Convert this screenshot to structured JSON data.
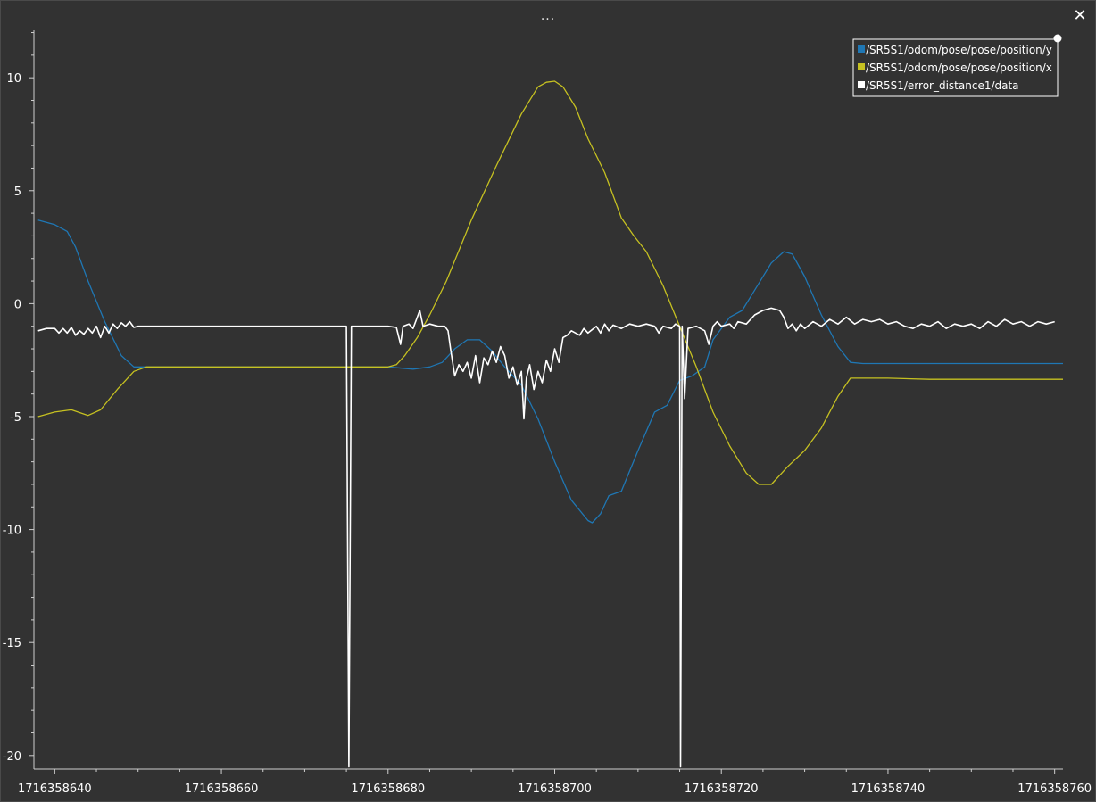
{
  "window": {
    "title": "...",
    "close_symbol": "✕"
  },
  "colors": {
    "background": "#323232",
    "axis": "#cfcfcf"
  },
  "chart_data": {
    "type": "line",
    "xlim": [
      1716358637.5,
      1716358761
    ],
    "ylim": [
      -20.6,
      12.1
    ],
    "x_ticks": [
      1716358640,
      1716358660,
      1716358680,
      1716358700,
      1716358720,
      1716358740,
      1716358760
    ],
    "x_tick_labels": [
      "1716358640",
      "1716358660",
      "1716358680",
      "1716358700",
      "1716358720",
      "1716358740",
      "1716358760"
    ],
    "y_ticks": [
      10,
      5,
      0,
      -5,
      -10,
      -15,
      -20
    ],
    "y_tick_labels": [
      "10",
      "5",
      "0",
      "-5",
      "-10",
      "-15",
      "-20"
    ],
    "legend_position": "top-right",
    "series": [
      {
        "name": "/SR5S1/odom/pose/pose/position/y",
        "color": "#1f77b4",
        "points": [
          [
            1716358638,
            3.7
          ],
          [
            1716358640,
            3.5
          ],
          [
            1716358641.5,
            3.2
          ],
          [
            1716358642.5,
            2.5
          ],
          [
            1716358644,
            1.0
          ],
          [
            1716358646,
            -0.8
          ],
          [
            1716358648,
            -2.3
          ],
          [
            1716358649.5,
            -2.8
          ],
          [
            1716358652,
            -2.8
          ],
          [
            1716358660,
            -2.8
          ],
          [
            1716358670,
            -2.8
          ],
          [
            1716358680,
            -2.8
          ],
          [
            1716358683,
            -2.9
          ],
          [
            1716358685,
            -2.8
          ],
          [
            1716358686.5,
            -2.6
          ],
          [
            1716358688,
            -2.0
          ],
          [
            1716358689.5,
            -1.6
          ],
          [
            1716358691,
            -1.6
          ],
          [
            1716358692.5,
            -2.1
          ],
          [
            1716358694,
            -2.8
          ],
          [
            1716358696,
            -3.6
          ],
          [
            1716358698,
            -5.1
          ],
          [
            1716358700,
            -7.0
          ],
          [
            1716358702,
            -8.7
          ],
          [
            1716358704,
            -9.6
          ],
          [
            1716358704.5,
            -9.7
          ],
          [
            1716358705.5,
            -9.3
          ],
          [
            1716358706.5,
            -8.5
          ],
          [
            1716358708,
            -8.3
          ],
          [
            1716358710,
            -6.5
          ],
          [
            1716358712,
            -4.8
          ],
          [
            1716358713.5,
            -4.5
          ],
          [
            1716358715,
            -3.4
          ],
          [
            1716358716.5,
            -3.2
          ],
          [
            1716358718,
            -2.8
          ],
          [
            1716358719,
            -1.6
          ],
          [
            1716358721,
            -0.6
          ],
          [
            1716358722.5,
            -0.3
          ],
          [
            1716358724,
            0.6
          ],
          [
            1716358726,
            1.8
          ],
          [
            1716358727.5,
            2.3
          ],
          [
            1716358728.5,
            2.2
          ],
          [
            1716358730,
            1.2
          ],
          [
            1716358732,
            -0.5
          ],
          [
            1716358734,
            -1.9
          ],
          [
            1716358735.5,
            -2.6
          ],
          [
            1716358737,
            -2.65
          ],
          [
            1716358745,
            -2.65
          ],
          [
            1716358755,
            -2.65
          ],
          [
            1716358761,
            -2.65
          ]
        ]
      },
      {
        "name": "/SR5S1/odom/pose/pose/position/x",
        "color": "#c6c121",
        "points": [
          [
            1716358638,
            -5.0
          ],
          [
            1716358640,
            -4.8
          ],
          [
            1716358642,
            -4.7
          ],
          [
            1716358644,
            -4.95
          ],
          [
            1716358645.5,
            -4.7
          ],
          [
            1716358647.5,
            -3.8
          ],
          [
            1716358649.5,
            -3.0
          ],
          [
            1716358651,
            -2.8
          ],
          [
            1716358660,
            -2.8
          ],
          [
            1716358670,
            -2.8
          ],
          [
            1716358680,
            -2.8
          ],
          [
            1716358681,
            -2.7
          ],
          [
            1716358682,
            -2.3
          ],
          [
            1716358683.5,
            -1.5
          ],
          [
            1716358685,
            -0.5
          ],
          [
            1716358687,
            1.0
          ],
          [
            1716358690,
            3.7
          ],
          [
            1716358693,
            6.1
          ],
          [
            1716358696,
            8.4
          ],
          [
            1716358698,
            9.6
          ],
          [
            1716358699,
            9.8
          ],
          [
            1716358700,
            9.85
          ],
          [
            1716358701,
            9.6
          ],
          [
            1716358702.5,
            8.7
          ],
          [
            1716358704,
            7.3
          ],
          [
            1716358706,
            5.8
          ],
          [
            1716358708,
            3.8
          ],
          [
            1716358709.5,
            3.0
          ],
          [
            1716358711,
            2.3
          ],
          [
            1716358713,
            0.8
          ],
          [
            1716358715,
            -1.0
          ],
          [
            1716358717,
            -2.8
          ],
          [
            1716358719,
            -4.8
          ],
          [
            1716358721,
            -6.3
          ],
          [
            1716358723,
            -7.5
          ],
          [
            1716358724.5,
            -8.0
          ],
          [
            1716358726,
            -8.0
          ],
          [
            1716358727,
            -7.6
          ],
          [
            1716358728,
            -7.2
          ],
          [
            1716358730,
            -6.5
          ],
          [
            1716358732,
            -5.5
          ],
          [
            1716358734,
            -4.1
          ],
          [
            1716358735.5,
            -3.3
          ],
          [
            1716358740,
            -3.3
          ],
          [
            1716358745,
            -3.35
          ],
          [
            1716358761,
            -3.35
          ]
        ]
      },
      {
        "name": "/SR5S1/error_distance1/data",
        "color": "#ffffff",
        "points": [
          [
            1716358638,
            -1.2
          ],
          [
            1716358639,
            -1.1
          ],
          [
            1716358640,
            -1.1
          ],
          [
            1716358640.5,
            -1.3
          ],
          [
            1716358641,
            -1.1
          ],
          [
            1716358641.5,
            -1.3
          ],
          [
            1716358642,
            -1.05
          ],
          [
            1716358642.5,
            -1.4
          ],
          [
            1716358643,
            -1.2
          ],
          [
            1716358643.5,
            -1.35
          ],
          [
            1716358644,
            -1.1
          ],
          [
            1716358644.5,
            -1.3
          ],
          [
            1716358645,
            -1.0
          ],
          [
            1716358645.5,
            -1.5
          ],
          [
            1716358646,
            -1.0
          ],
          [
            1716358646.5,
            -1.3
          ],
          [
            1716358647,
            -0.9
          ],
          [
            1716358647.5,
            -1.1
          ],
          [
            1716358648,
            -0.85
          ],
          [
            1716358648.5,
            -1.0
          ],
          [
            1716358649,
            -0.8
          ],
          [
            1716358649.5,
            -1.05
          ],
          [
            1716358650,
            -1.0
          ],
          [
            1716358655,
            -1.0
          ],
          [
            1716358660,
            -1.0
          ],
          [
            1716358665,
            -1.0
          ],
          [
            1716358670,
            -1.0
          ],
          [
            1716358675,
            -1.0
          ],
          [
            1716358675.3,
            -20.5
          ],
          [
            1716358675.6,
            -1.0
          ],
          [
            1716358680,
            -1.0
          ],
          [
            1716358681,
            -1.05
          ],
          [
            1716358681.5,
            -1.8
          ],
          [
            1716358681.8,
            -1.0
          ],
          [
            1716358682.5,
            -0.9
          ],
          [
            1716358683,
            -1.1
          ],
          [
            1716358683.5,
            -0.6
          ],
          [
            1716358683.8,
            -0.3
          ],
          [
            1716358684.2,
            -1.0
          ],
          [
            1716358685,
            -0.9
          ],
          [
            1716358686,
            -1.0
          ],
          [
            1716358686.8,
            -1.0
          ],
          [
            1716358687.2,
            -1.2
          ],
          [
            1716358687.5,
            -2.0
          ],
          [
            1716358688,
            -3.2
          ],
          [
            1716358688.5,
            -2.7
          ],
          [
            1716358689,
            -3.0
          ],
          [
            1716358689.5,
            -2.6
          ],
          [
            1716358690,
            -3.3
          ],
          [
            1716358690.5,
            -2.3
          ],
          [
            1716358691,
            -3.5
          ],
          [
            1716358691.5,
            -2.4
          ],
          [
            1716358692,
            -2.7
          ],
          [
            1716358692.5,
            -2.1
          ],
          [
            1716358693,
            -2.6
          ],
          [
            1716358693.5,
            -1.9
          ],
          [
            1716358694,
            -2.3
          ],
          [
            1716358694.5,
            -3.3
          ],
          [
            1716358695,
            -2.8
          ],
          [
            1716358695.5,
            -3.6
          ],
          [
            1716358696,
            -3.0
          ],
          [
            1716358696.3,
            -5.1
          ],
          [
            1716358696.6,
            -3.3
          ],
          [
            1716358697,
            -2.7
          ],
          [
            1716358697.5,
            -3.8
          ],
          [
            1716358698,
            -3.0
          ],
          [
            1716358698.5,
            -3.5
          ],
          [
            1716358699,
            -2.5
          ],
          [
            1716358699.5,
            -3.0
          ],
          [
            1716358700,
            -2.0
          ],
          [
            1716358700.5,
            -2.6
          ],
          [
            1716358701,
            -1.5
          ],
          [
            1716358701.5,
            -1.4
          ],
          [
            1716358702,
            -1.2
          ],
          [
            1716358703,
            -1.4
          ],
          [
            1716358703.5,
            -1.1
          ],
          [
            1716358704,
            -1.3
          ],
          [
            1716358705,
            -1.0
          ],
          [
            1716358705.5,
            -1.3
          ],
          [
            1716358706,
            -0.9
          ],
          [
            1716358706.5,
            -1.2
          ],
          [
            1716358707,
            -0.95
          ],
          [
            1716358708,
            -1.1
          ],
          [
            1716358709,
            -0.9
          ],
          [
            1716358710,
            -1.0
          ],
          [
            1716358711,
            -0.9
          ],
          [
            1716358712,
            -1.0
          ],
          [
            1716358712.5,
            -1.3
          ],
          [
            1716358713,
            -1.0
          ],
          [
            1716358714,
            -1.1
          ],
          [
            1716358714.5,
            -0.9
          ],
          [
            1716358715,
            -1.0
          ],
          [
            1716358715.1,
            -20.5
          ],
          [
            1716358715.3,
            -1.0
          ],
          [
            1716358715.6,
            -4.2
          ],
          [
            1716358716,
            -1.1
          ],
          [
            1716358717,
            -1.0
          ],
          [
            1716358718,
            -1.2
          ],
          [
            1716358718.5,
            -1.8
          ],
          [
            1716358719,
            -1.0
          ],
          [
            1716358719.5,
            -0.8
          ],
          [
            1716358720,
            -1.0
          ],
          [
            1716358721,
            -0.9
          ],
          [
            1716358721.5,
            -1.1
          ],
          [
            1716358722,
            -0.8
          ],
          [
            1716358723,
            -0.9
          ],
          [
            1716358724,
            -0.5
          ],
          [
            1716358725,
            -0.3
          ],
          [
            1716358726,
            -0.2
          ],
          [
            1716358727,
            -0.3
          ],
          [
            1716358727.5,
            -0.6
          ],
          [
            1716358728,
            -1.1
          ],
          [
            1716358728.5,
            -0.9
          ],
          [
            1716358729,
            -1.2
          ],
          [
            1716358729.5,
            -0.9
          ],
          [
            1716358730,
            -1.1
          ],
          [
            1716358731,
            -0.8
          ],
          [
            1716358732,
            -1.0
          ],
          [
            1716358733,
            -0.7
          ],
          [
            1716358734,
            -0.9
          ],
          [
            1716358735,
            -0.6
          ],
          [
            1716358736,
            -0.9
          ],
          [
            1716358737,
            -0.7
          ],
          [
            1716358738,
            -0.8
          ],
          [
            1716358739,
            -0.7
          ],
          [
            1716358740,
            -0.9
          ],
          [
            1716358741,
            -0.8
          ],
          [
            1716358742,
            -1.0
          ],
          [
            1716358743,
            -1.1
          ],
          [
            1716358744,
            -0.9
          ],
          [
            1716358745,
            -1.0
          ],
          [
            1716358746,
            -0.8
          ],
          [
            1716358747,
            -1.1
          ],
          [
            1716358748,
            -0.9
          ],
          [
            1716358749,
            -1.0
          ],
          [
            1716358750,
            -0.9
          ],
          [
            1716358751,
            -1.1
          ],
          [
            1716358752,
            -0.8
          ],
          [
            1716358753,
            -1.0
          ],
          [
            1716358754,
            -0.7
          ],
          [
            1716358755,
            -0.9
          ],
          [
            1716358756,
            -0.8
          ],
          [
            1716358757,
            -1.0
          ],
          [
            1716358758,
            -0.8
          ],
          [
            1716358759,
            -0.9
          ],
          [
            1716358760,
            -0.8
          ]
        ]
      }
    ]
  }
}
